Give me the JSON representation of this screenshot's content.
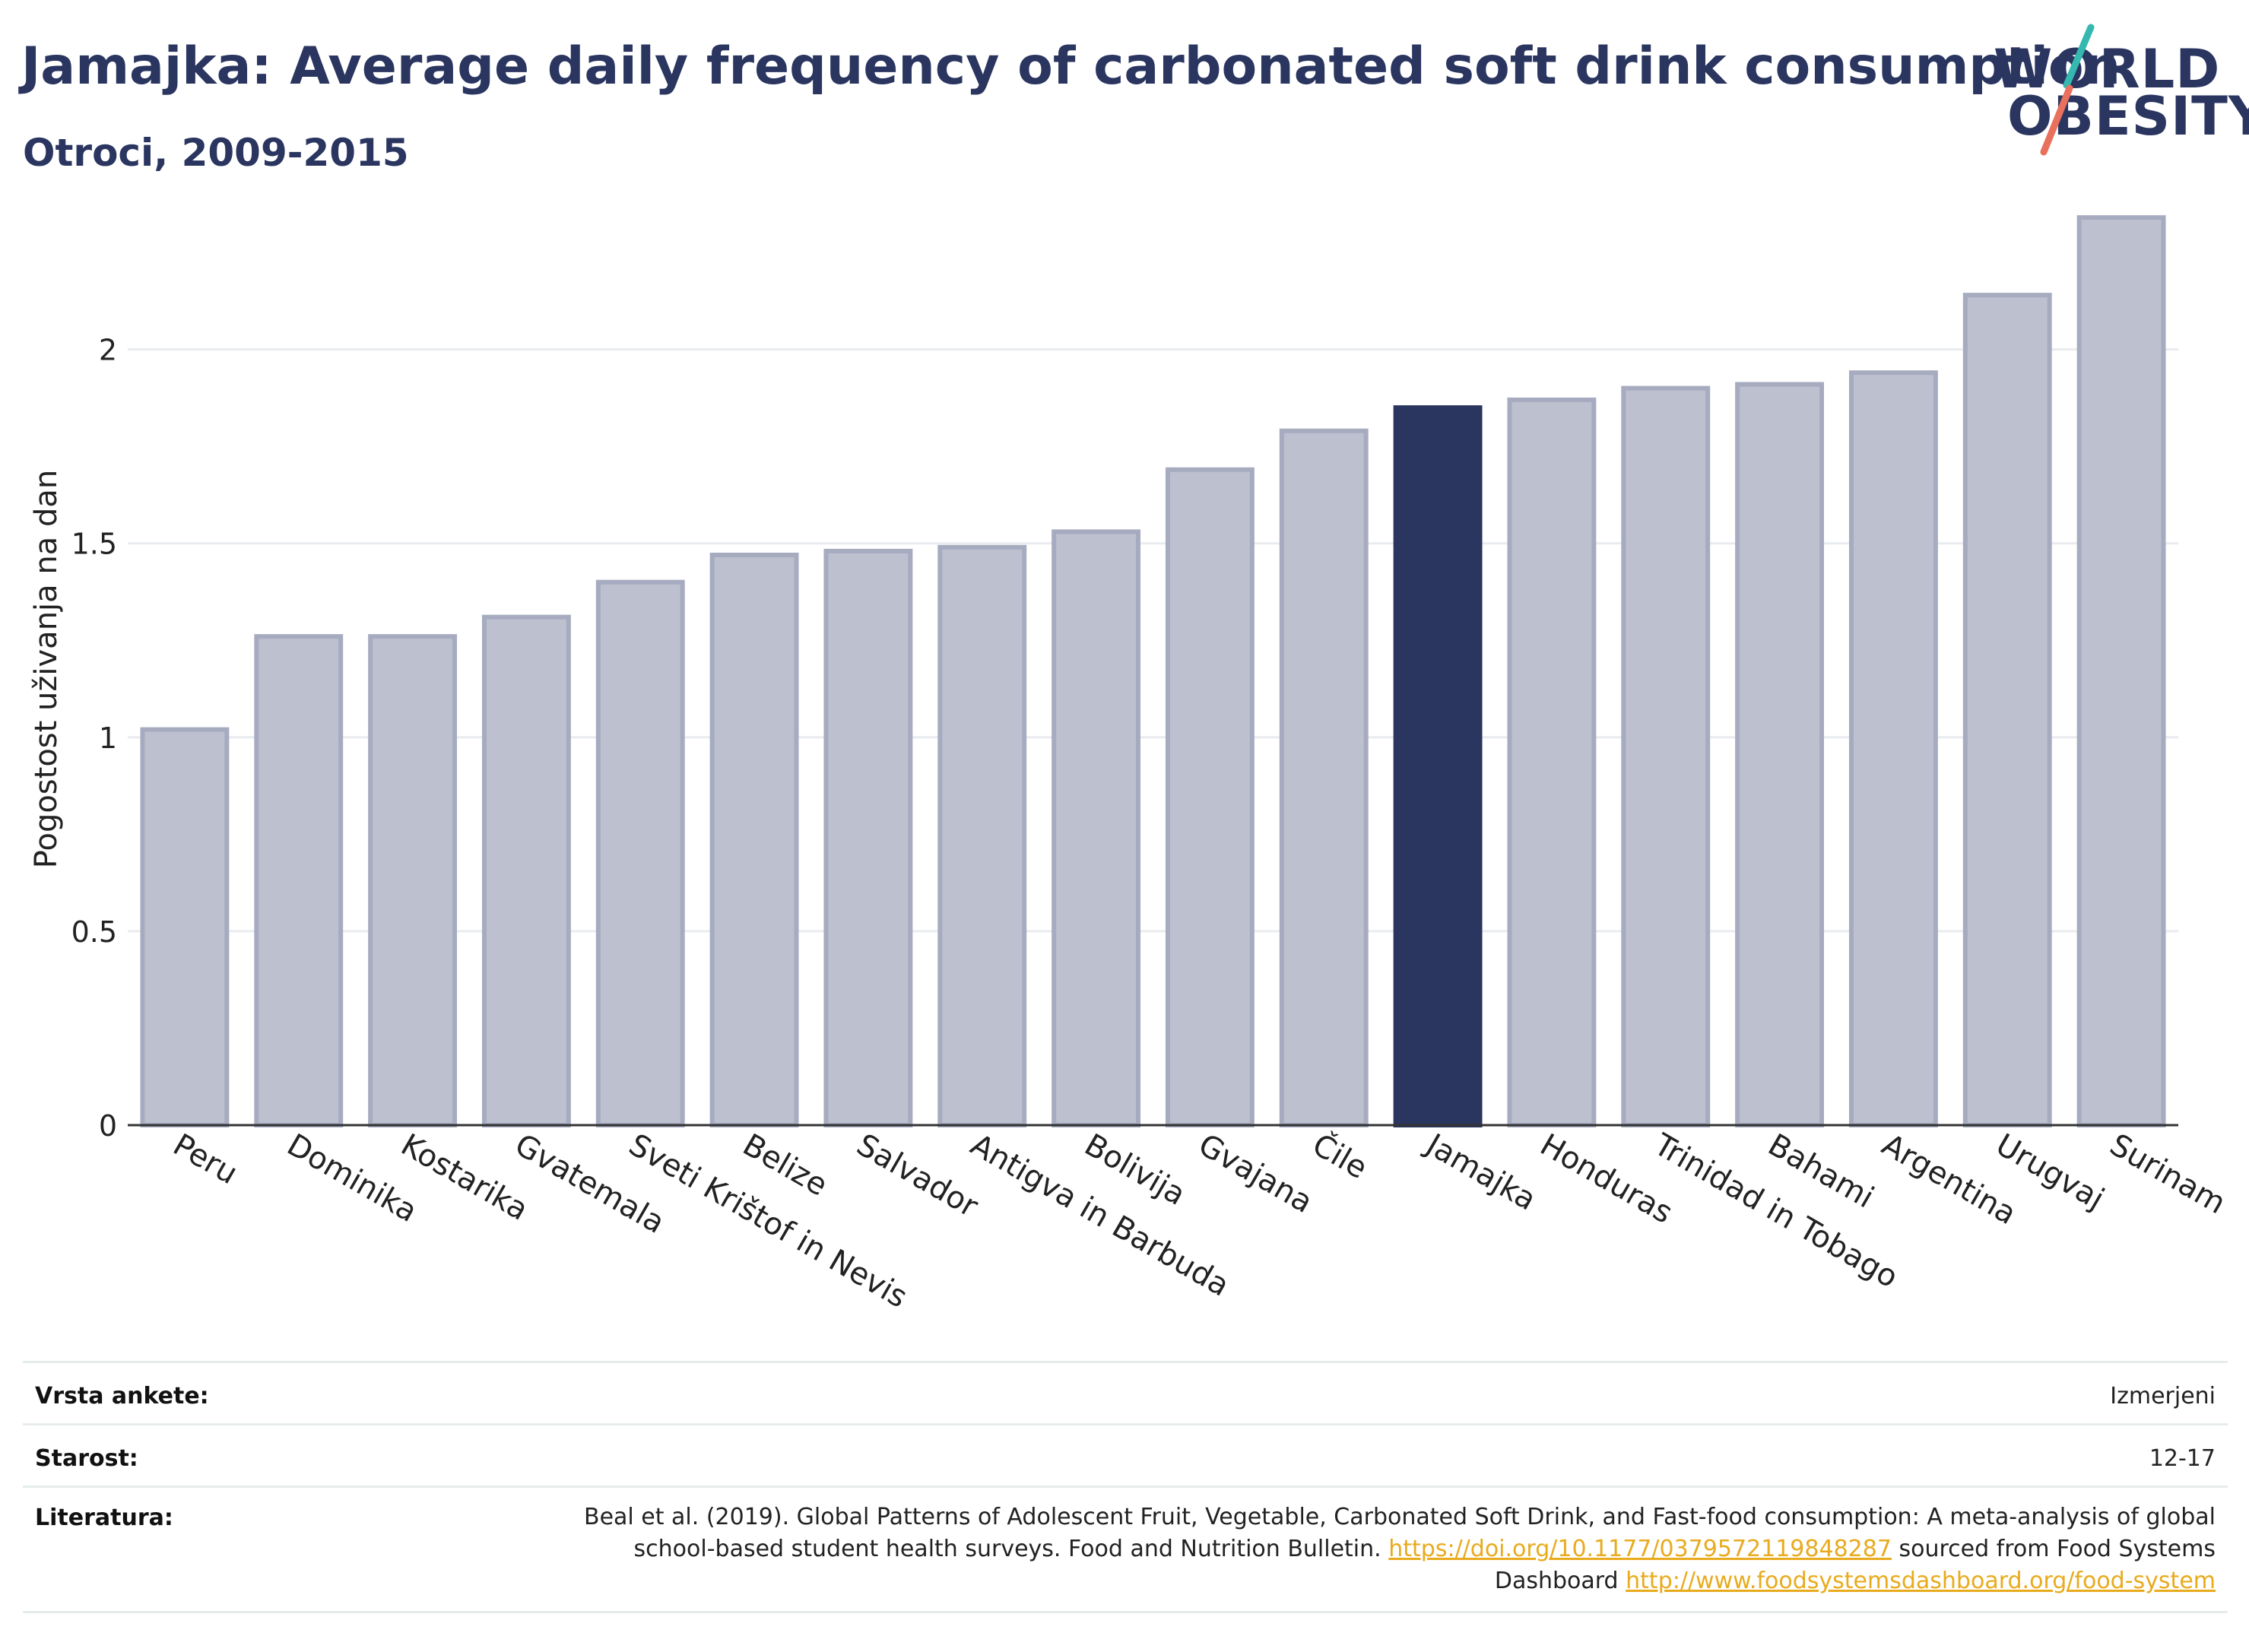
{
  "header": {
    "title": "Jamajka: Average daily frequency of carbonated soft drink consumption",
    "subtitle": "Otroci, 2009-2015"
  },
  "logo": {
    "line1": "WORLD",
    "line2": "OBESITY",
    "accent_colors": [
      "#35b8b0",
      "#e8705c"
    ]
  },
  "colors": {
    "bar": "#bcc0cf",
    "bar_stroke": "#a6abc0",
    "highlight": "#2a3560",
    "grid": "#e9ecef",
    "axis": "#333333"
  },
  "chart_data": {
    "type": "bar",
    "ylabel": "Pogostost uživanja na dan",
    "xlabel": "",
    "ylim": [
      0,
      2.45
    ],
    "yticks": [
      0,
      0.5,
      1,
      1.5,
      2
    ],
    "ytick_labels": [
      "0",
      "0.5",
      "1",
      "1.5",
      "2"
    ],
    "grid": true,
    "highlight": "Jamajka",
    "categories": [
      "Peru",
      "Dominika",
      "Kostarika",
      "Gvatemala",
      "Sveti Krištof in Nevis",
      "Belize",
      "Salvador",
      "Antigva in Barbuda",
      "Bolivija",
      "Gvajana",
      "Čile",
      "Jamajka",
      "Honduras",
      "Trinidad in Tobago",
      "Bahami",
      "Argentina",
      "Urugvaj",
      "Surinam"
    ],
    "values": [
      1.02,
      1.26,
      1.26,
      1.31,
      1.4,
      1.47,
      1.48,
      1.49,
      1.53,
      1.69,
      1.79,
      1.85,
      1.87,
      1.9,
      1.91,
      1.94,
      2.14,
      2.34
    ]
  },
  "footer": {
    "survey_label": "Vrsta ankete:",
    "survey_value": "Izmerjeni",
    "age_label": "Starost:",
    "age_value": "12-17",
    "ref_label": "Literatura:",
    "ref_text_1": "Beal et al. (2019). Global Patterns of Adolescent Fruit, Vegetable, Carbonated Soft Drink, and Fast-food consumption: A meta-analysis of global school-based student health surveys. Food and Nutrition Bulletin.",
    "ref_link_1": "https://doi.org/10.1177/0379572119848287",
    "ref_text_2": "sourced from Food Systems Dashboard",
    "ref_link_2": "http://www.foodsystemsdashboard.org/food-system"
  }
}
